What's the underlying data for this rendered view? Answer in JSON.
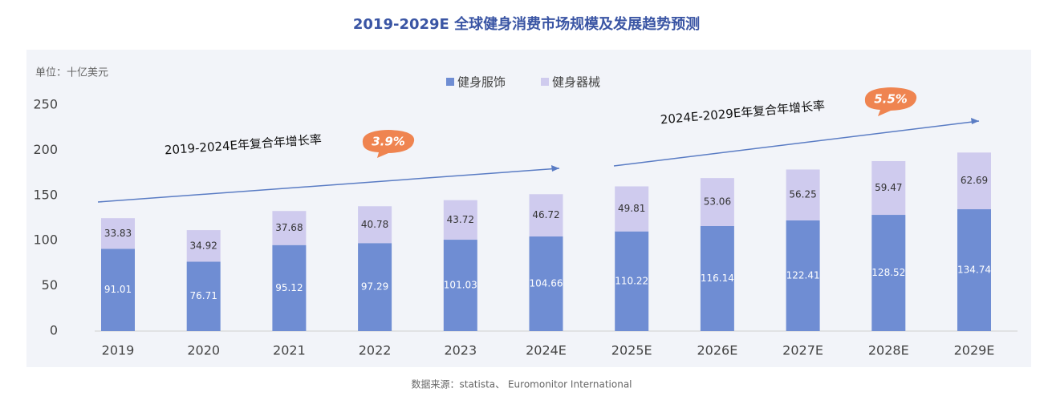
{
  "chart_data": {
    "type": "stacked_bar",
    "title": "2019-2029E 全球健身消费市场规模及发展趋势预测",
    "unit_label": "单位：十亿美元",
    "categories": [
      "2019",
      "2020",
      "2021",
      "2022",
      "2023",
      "2024E",
      "2025E",
      "2026E",
      "2027E",
      "2028E",
      "2029E"
    ],
    "series": [
      {
        "name": "健身服饰",
        "color": "#6f8dd3",
        "values": [
          91.01,
          76.71,
          95.12,
          97.29,
          101.03,
          104.66,
          110.22,
          116.14,
          122.41,
          128.52,
          134.74
        ]
      },
      {
        "name": "健身器械",
        "color": "#cfcbee",
        "values": [
          33.83,
          34.92,
          37.68,
          40.78,
          43.72,
          46.72,
          49.81,
          53.06,
          56.25,
          59.47,
          62.69
        ]
      }
    ],
    "ylim": [
      0,
      250
    ],
    "yticks": [
      0,
      50,
      100,
      150,
      200,
      250
    ],
    "annotations": [
      {
        "text": "2019-2024E年复合年增长率",
        "rate": "3.9%"
      },
      {
        "text": "2024E-2029E年复合年增长率",
        "rate": "5.5%"
      }
    ],
    "source": "数据来源：statista、 Euromonitor International"
  }
}
